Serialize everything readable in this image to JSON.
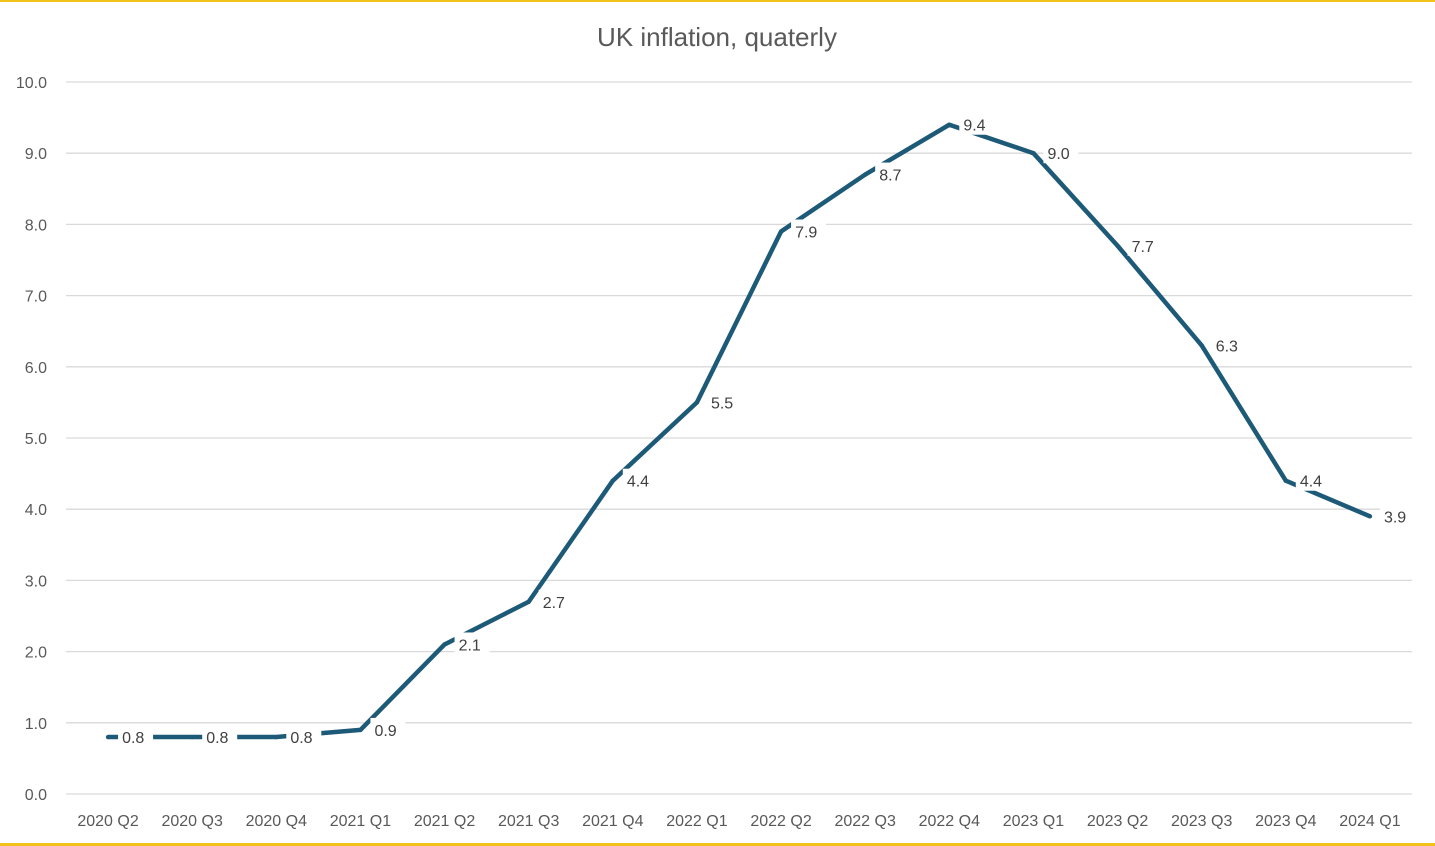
{
  "chart_data": {
    "type": "line",
    "title": "UK inflation, quaterly",
    "xlabel": "",
    "ylabel": "",
    "ylim": [
      0,
      10
    ],
    "yticks": [
      "0.0",
      "1.0",
      "2.0",
      "3.0",
      "4.0",
      "5.0",
      "6.0",
      "7.0",
      "8.0",
      "9.0",
      "10.0"
    ],
    "grid": true,
    "legend": "none",
    "categories": [
      "2020 Q2",
      "2020 Q3",
      "2020 Q4",
      "2021 Q1",
      "2021 Q2",
      "2021 Q3",
      "2021 Q4",
      "2022 Q1",
      "2022 Q2",
      "2022 Q3",
      "2022 Q4",
      "2023 Q1",
      "2023 Q2",
      "2023 Q3",
      "2023 Q4",
      "2024 Q1"
    ],
    "series": [
      {
        "values": [
          0.8,
          0.8,
          0.8,
          0.9,
          2.1,
          2.7,
          4.4,
          5.5,
          7.9,
          8.7,
          9.4,
          9.0,
          7.7,
          6.3,
          4.4,
          3.9
        ],
        "data_labels": [
          "0.8",
          "0.8",
          "0.8",
          "0.9",
          "2.1",
          "2.7",
          "4.4",
          "5.5",
          "7.9",
          "8.7",
          "9.4",
          "9.0",
          "7.7",
          "6.3",
          "4.4",
          "3.9"
        ],
        "color": "#1d5a78"
      }
    ],
    "colors": {
      "line": "#1d5a78",
      "grid": "#d9d9d9",
      "border": "#f2c21b"
    }
  }
}
